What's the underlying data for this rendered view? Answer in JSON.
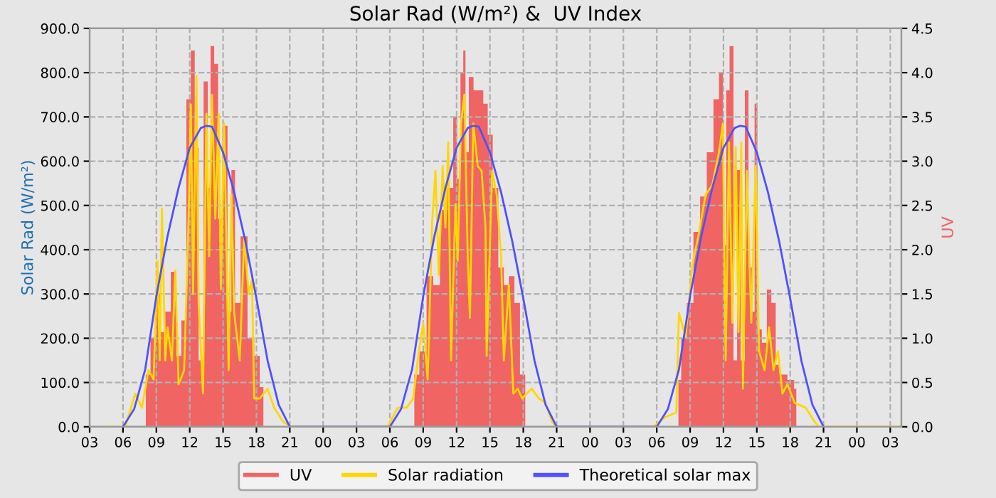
{
  "chart_data": {
    "type": "line",
    "title": "Solar Rad (W/m²) &  UV Index",
    "ylabel": "Solar Rad (W/m²)",
    "y2label": "UV",
    "xlim": [
      3,
      76
    ],
    "ylim": [
      0,
      900
    ],
    "y2lim": [
      0,
      4.5
    ],
    "xticks": [
      {
        "value": 3,
        "label": "03"
      },
      {
        "value": 6,
        "label": "06"
      },
      {
        "value": 9,
        "label": "09"
      },
      {
        "value": 12,
        "label": "12"
      },
      {
        "value": 15,
        "label": "15"
      },
      {
        "value": 18,
        "label": "18"
      },
      {
        "value": 21,
        "label": "21"
      },
      {
        "value": 24,
        "label": "00"
      },
      {
        "value": 27,
        "label": "03"
      },
      {
        "value": 30,
        "label": "06"
      },
      {
        "value": 33,
        "label": "09"
      },
      {
        "value": 36,
        "label": "12"
      },
      {
        "value": 39,
        "label": "15"
      },
      {
        "value": 42,
        "label": "18"
      },
      {
        "value": 45,
        "label": "21"
      },
      {
        "value": 48,
        "label": "00"
      },
      {
        "value": 51,
        "label": "03"
      },
      {
        "value": 54,
        "label": "06"
      },
      {
        "value": 57,
        "label": "09"
      },
      {
        "value": 60,
        "label": "12"
      },
      {
        "value": 63,
        "label": "15"
      },
      {
        "value": 66,
        "label": "18"
      },
      {
        "value": 69,
        "label": "21"
      },
      {
        "value": 72,
        "label": "00"
      },
      {
        "value": 75,
        "label": "03"
      }
    ],
    "yticks": [
      {
        "value": 0,
        "label": "0.0"
      },
      {
        "value": 100,
        "label": "100.0"
      },
      {
        "value": 200,
        "label": "200.0"
      },
      {
        "value": 300,
        "label": "300.0"
      },
      {
        "value": 400,
        "label": "400.0"
      },
      {
        "value": 500,
        "label": "500.0"
      },
      {
        "value": 600,
        "label": "600.0"
      },
      {
        "value": 700,
        "label": "700.0"
      },
      {
        "value": 800,
        "label": "800.0"
      },
      {
        "value": 900,
        "label": "900.0"
      }
    ],
    "y2ticks": [
      {
        "value": 0,
        "label": "0.0"
      },
      {
        "value": 0.5,
        "label": "0.5"
      },
      {
        "value": 1,
        "label": "1.0"
      },
      {
        "value": 1.5,
        "label": "1.5"
      },
      {
        "value": 2,
        "label": "2.0"
      },
      {
        "value": 2.5,
        "label": "2.5"
      },
      {
        "value": 3,
        "label": "3.0"
      },
      {
        "value": 3.5,
        "label": "3.5"
      },
      {
        "value": 4,
        "label": "4.0"
      },
      {
        "value": 4.5,
        "label": "4.5"
      }
    ],
    "grid": true,
    "legend": "bottom",
    "series": [
      {
        "name": "UV",
        "type": "area",
        "axis": "y2",
        "color": "#f06464",
        "x": [
          4.5,
          7.9,
          8.2,
          8.75,
          9.2,
          9.6,
          10.0,
          10.6,
          11.0,
          11.5,
          11.9,
          12.3,
          12.6,
          13.0,
          13.5,
          13.75,
          14.0,
          14.4,
          14.7,
          15.2,
          15.6,
          15.9,
          16.25,
          16.9,
          17.5,
          18.1,
          18.5,
          18.75,
          32.1,
          32.3,
          33.0,
          33.6,
          34.2,
          34.8,
          35.5,
          35.9,
          36.2,
          36.5,
          36.7,
          36.9,
          37.3,
          37.75,
          38.2,
          38.6,
          39.0,
          39.5,
          40.0,
          40.5,
          40.9,
          41.5,
          41.9,
          42.1,
          42.25,
          55.9,
          56.0,
          56.4,
          57.0,
          57.6,
          58.2,
          58.8,
          59.4,
          59.8,
          60.1,
          60.4,
          60.7,
          61.1,
          61.35,
          61.75,
          62.1,
          62.4,
          62.7,
          62.9,
          63.2,
          63.7,
          64.1,
          64.5,
          64.9,
          65.3,
          66.2,
          66.5,
          66.6,
          76
        ],
        "values": [
          0,
          0,
          0.59,
          1.0,
          1.5,
          1.07,
          1.3,
          1.75,
          0.8,
          1.2,
          3.7,
          4.25,
          3.15,
          0.75,
          3.9,
          2.7,
          4.3,
          4.1,
          2.35,
          3.4,
          1.3,
          2.9,
          1.4,
          2.15,
          1.0,
          0.8,
          0.45,
          0,
          0,
          0.59,
          0.85,
          1.7,
          1.6,
          2.45,
          2.7,
          3.5,
          2.8,
          4.0,
          4.25,
          3.1,
          3.95,
          3.8,
          3.8,
          3.65,
          3.3,
          2.7,
          1.8,
          1.6,
          1.7,
          1.4,
          0.59,
          0.59,
          0,
          0,
          0.53,
          1.0,
          1.4,
          2.2,
          2.6,
          3.1,
          3.7,
          4.0,
          2.05,
          3.8,
          4.3,
          0.75,
          2.9,
          0.75,
          3.8,
          1.8,
          1.3,
          3.65,
          1.1,
          0.95,
          1.55,
          1.4,
          0.7,
          0.59,
          0.53,
          0.43,
          0,
          0
        ]
      },
      {
        "name": "Solar radiation",
        "color": "#ffd700",
        "x": [
          4.5,
          6.2,
          7.1,
          7.7,
          8.3,
          8.75,
          9.1,
          9.3,
          9.5,
          9.8,
          10.0,
          10.4,
          10.7,
          11.0,
          11.5,
          11.9,
          12.1,
          12.3,
          12.6,
          12.8,
          13.2,
          13.5,
          13.75,
          14.0,
          14.3,
          14.6,
          14.8,
          15.1,
          15.5,
          15.75,
          16.0,
          16.5,
          16.9,
          17.3,
          17.6,
          17.8,
          18.3,
          19.0,
          19.6,
          20.4,
          21.2,
          29.8,
          30.7,
          31.5,
          32.1,
          32.5,
          33.0,
          33.4,
          33.8,
          34.1,
          34.4,
          34.75,
          35.0,
          35.25,
          35.5,
          35.9,
          36.1,
          36.4,
          36.7,
          37.0,
          37.2,
          37.5,
          37.9,
          38.25,
          38.6,
          38.7,
          39.2,
          39.6,
          40.0,
          40.25,
          40.7,
          41.1,
          41.5,
          41.9,
          42.75,
          43.4,
          44.0,
          44.6,
          45.0,
          53.7,
          54.7,
          55.75,
          56.0,
          56.6,
          57.2,
          57.8,
          58.4,
          59.0,
          59.6,
          59.95,
          60.2,
          60.5,
          60.8,
          61.1,
          61.35,
          61.6,
          61.75,
          62.1,
          62.5,
          62.9,
          63.2,
          63.7,
          64.1,
          64.5,
          64.9,
          65.3,
          65.75,
          66.4,
          67.4,
          68.2,
          68.6,
          76
        ],
        "values": [
          0,
          0,
          75,
          43,
          128,
          107,
          375,
          150,
          493,
          150,
          225,
          150,
          353,
          96,
          128,
          470,
          728,
          300,
          793,
          278,
          75,
          707,
          385,
          750,
          470,
          707,
          310,
          685,
          128,
          525,
          257,
          150,
          428,
          300,
          332,
          64,
          64,
          86,
          43,
          11,
          0,
          0,
          43,
          43,
          64,
          150,
          235,
          107,
          460,
          578,
          343,
          589,
          450,
          642,
          150,
          503,
          375,
          685,
          750,
          385,
          246,
          685,
          589,
          578,
          450,
          160,
          578,
          525,
          385,
          150,
          321,
          75,
          86,
          64,
          86,
          64,
          54,
          11,
          0,
          0,
          21,
          32,
          257,
          204,
          364,
          439,
          525,
          546,
          621,
          685,
          150,
          642,
          235,
          632,
          214,
          642,
          86,
          578,
          235,
          589,
          171,
          128,
          225,
          128,
          171,
          75,
          96,
          54,
          43,
          11,
          0,
          0
        ]
      },
      {
        "name": "Theoretical solar max",
        "color": "#5050ff",
        "x": [
          6,
          7,
          8,
          9,
          10,
          11,
          12,
          13,
          13.5,
          14,
          15,
          16,
          17,
          18,
          19,
          20,
          21,
          30,
          31,
          32,
          33,
          34,
          35,
          36,
          37,
          37.5,
          38,
          39,
          40,
          41,
          42,
          43,
          44,
          45,
          54,
          55,
          56,
          57,
          58,
          59,
          60,
          61,
          61.5,
          62,
          63,
          64,
          65,
          66,
          67,
          68,
          69
        ],
        "values": [
          0,
          40,
          130,
          295,
          430,
          540,
          630,
          675,
          680,
          678,
          620,
          530,
          420,
          290,
          150,
          50,
          0,
          0,
          40,
          130,
          295,
          430,
          540,
          630,
          675,
          680,
          678,
          620,
          530,
          420,
          290,
          150,
          50,
          0,
          0,
          40,
          130,
          295,
          430,
          540,
          630,
          675,
          680,
          678,
          620,
          530,
          420,
          290,
          150,
          50,
          0
        ]
      }
    ]
  }
}
